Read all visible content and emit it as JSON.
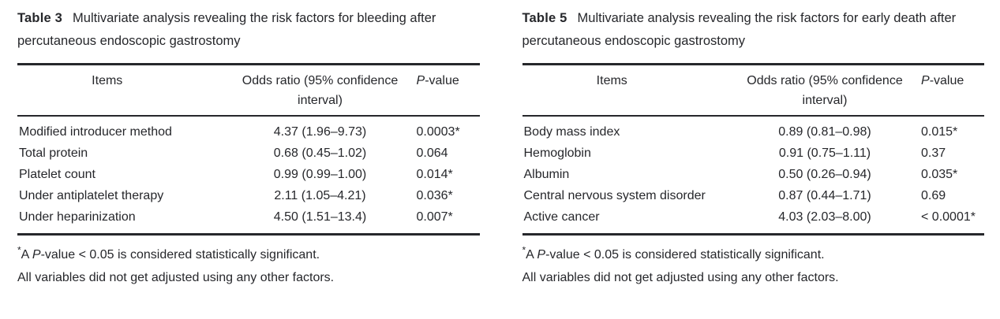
{
  "page": {
    "background": "#ffffff",
    "text_color": "#26272b",
    "rule_color": "#26272b"
  },
  "tables": [
    {
      "label": "Table 3",
      "caption": "Multivariate analysis revealing the risk factors for bleeding after percutaneous endoscopic gastrostomy",
      "header": {
        "items": "Items",
        "odds": "Odds ratio (95% confidence interval)",
        "p_italic": "P",
        "p_rest": "-value"
      },
      "rows": [
        {
          "item": "Modified introducer method",
          "odds": "4.37 (1.96–9.73)",
          "p": "0.0003*"
        },
        {
          "item": "Total protein",
          "odds": "0.68 (0.45–1.02)",
          "p": "0.064"
        },
        {
          "item": "Platelet count",
          "odds": "0.99 (0.99–1.00)",
          "p": "0.014*"
        },
        {
          "item": "Under antiplatelet therapy",
          "odds": "2.11 (1.05–4.21)",
          "p": "0.036*"
        },
        {
          "item": "Under heparinization",
          "odds": "4.50 (1.51–13.4)",
          "p": "0.007*"
        }
      ],
      "footnotes": {
        "significance": {
          "marker": "*",
          "before_p": "A ",
          "p_italic": "P",
          "after_p": "-value < 0.05 is considered statistically significant."
        },
        "adjustment": "All variables did not get adjusted using any other factors."
      }
    },
    {
      "label": "Table 5",
      "caption": "Multivariate analysis revealing the risk factors for early death after percutaneous endoscopic gastrostomy",
      "header": {
        "items": "Items",
        "odds": "Odds ratio (95% confidence interval)",
        "p_italic": "P",
        "p_rest": "-value"
      },
      "rows": [
        {
          "item": "Body mass index",
          "odds": "0.89 (0.81–0.98)",
          "p": "0.015*"
        },
        {
          "item": "Hemoglobin",
          "odds": "0.91 (0.75–1.11)",
          "p": "0.37"
        },
        {
          "item": "Albumin",
          "odds": "0.50 (0.26–0.94)",
          "p": "0.035*"
        },
        {
          "item": "Central nervous system disorder",
          "odds": "0.87 (0.44–1.71)",
          "p": "0.69"
        },
        {
          "item": "Active cancer",
          "odds": "4.03 (2.03–8.00)",
          "p": "< 0.0001*"
        }
      ],
      "footnotes": {
        "significance": {
          "marker": "*",
          "before_p": "A ",
          "p_italic": "P",
          "after_p": "-value < 0.05 is considered statistically significant."
        },
        "adjustment": "All variables did not get adjusted using any other factors."
      }
    }
  ]
}
